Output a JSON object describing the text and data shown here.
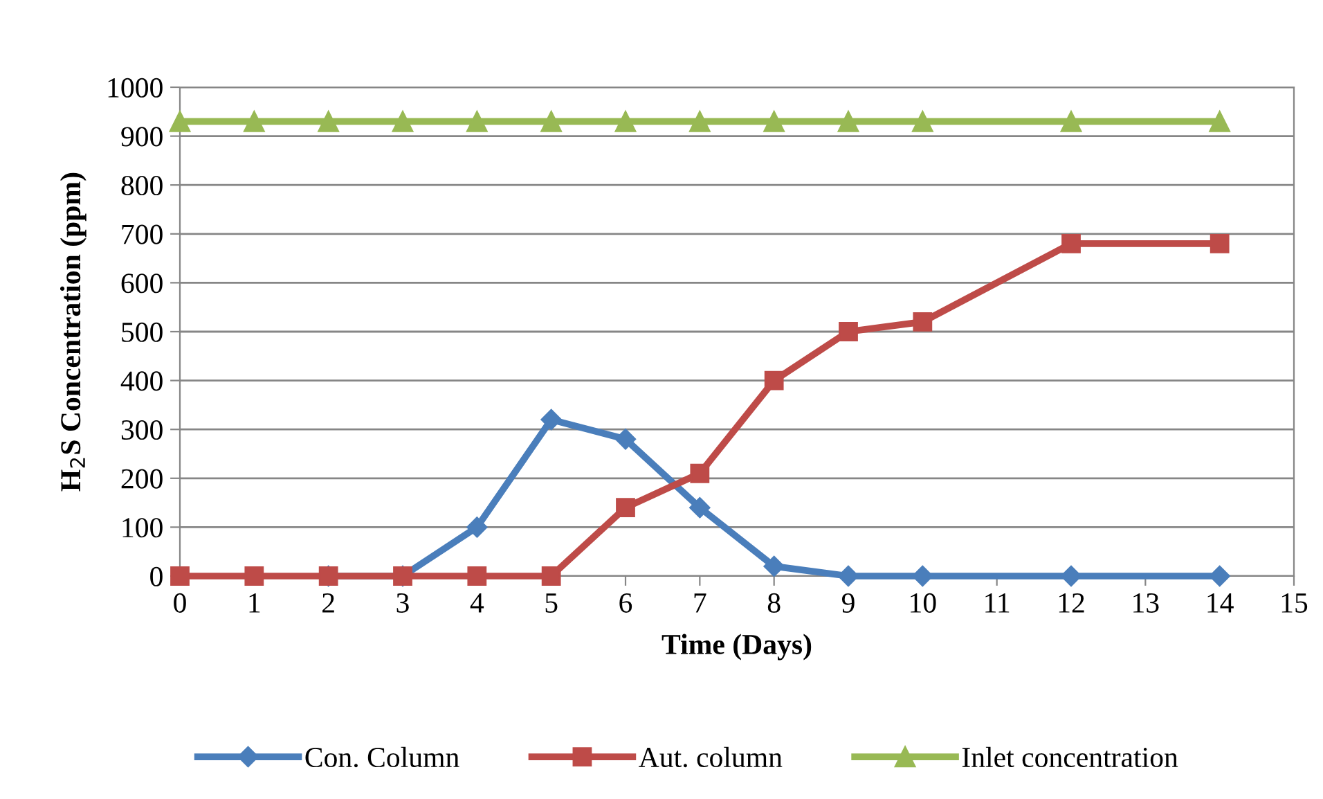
{
  "chart_data": {
    "type": "line",
    "xlabel": "Time (Days)",
    "ylabel": "H$_{2}$S Concentration (ppm)",
    "xlim": [
      0,
      15
    ],
    "xticks": [
      0,
      1,
      2,
      3,
      4,
      5,
      6,
      7,
      8,
      9,
      10,
      11,
      12,
      13,
      14,
      15
    ],
    "ylim": [
      0,
      1000
    ],
    "yticks": [
      0,
      100,
      200,
      300,
      400,
      500,
      600,
      700,
      800,
      900,
      1000
    ],
    "grid": "y",
    "legend": "bottom",
    "line_style": "solid",
    "x": [
      0,
      1,
      2,
      3,
      4,
      5,
      6,
      7,
      8,
      9,
      10,
      12,
      14
    ],
    "series": [
      {
        "name": "Con. Column",
        "color": "#4a7ebb",
        "marker": "diamond",
        "values": [
          null,
          null,
          0,
          0,
          100,
          320,
          280,
          140,
          20,
          0,
          0,
          0,
          0
        ]
      },
      {
        "name": "Aut. column",
        "color": "#be4b48",
        "marker": "square",
        "values": [
          0,
          0,
          0,
          0,
          0,
          0,
          140,
          210,
          400,
          500,
          520,
          680,
          680
        ]
      },
      {
        "name": "Inlet concentration",
        "color": "#98b954",
        "marker": "triangle",
        "values": [
          930,
          930,
          930,
          930,
          930,
          930,
          930,
          930,
          930,
          930,
          930,
          930,
          930
        ]
      }
    ]
  }
}
